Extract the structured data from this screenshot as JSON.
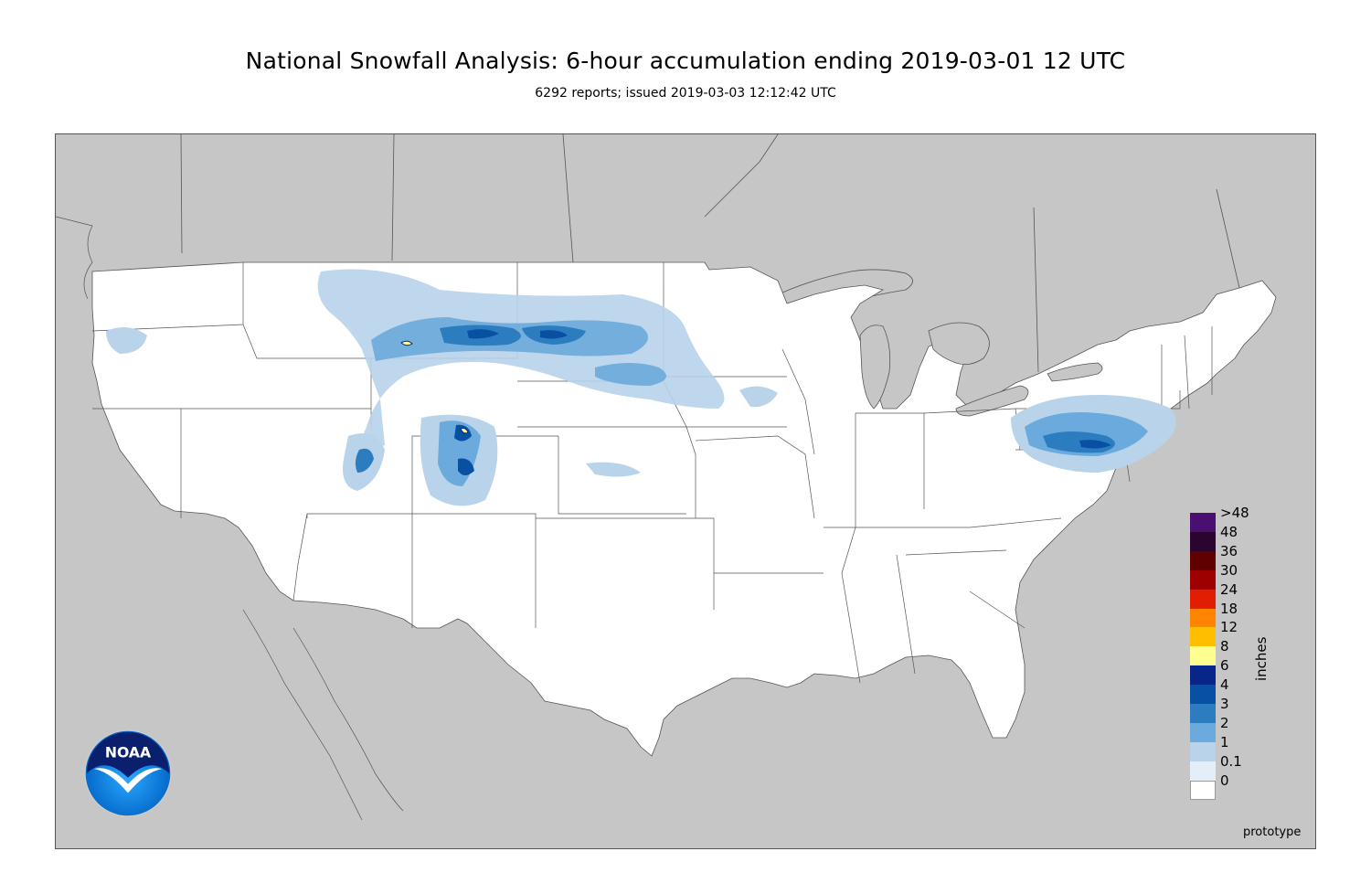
{
  "title": "National Snowfall Analysis: 6-hour accumulation ending 2019-03-01 12 UTC",
  "subtitle": "6292 reports; issued 2019-03-03 12:12:42 UTC",
  "legend": {
    "units": "inches",
    "labels": [
      ">48",
      "48",
      "36",
      "30",
      "24",
      "18",
      "12",
      "8",
      "6",
      "4",
      "3",
      "2",
      "1",
      "0.1",
      "0"
    ],
    "colors": [
      "#4b0f72",
      "#2b0530",
      "#600000",
      "#9e0000",
      "#e21e00",
      "#ff8400",
      "#ffbf00",
      "#ffff90",
      "#08268a",
      "#0750a4",
      "#2c7dc0",
      "#6aaadc",
      "#b8d3ea",
      "#e4eef8",
      "#ffffff"
    ]
  },
  "colors": {
    "land_outside": "#c6c6c6",
    "land_us": "#ffffff",
    "border": "#555555"
  },
  "logo": {
    "text": "NOAA",
    "icon": "noaa-logo"
  },
  "watermark": "prototype"
}
